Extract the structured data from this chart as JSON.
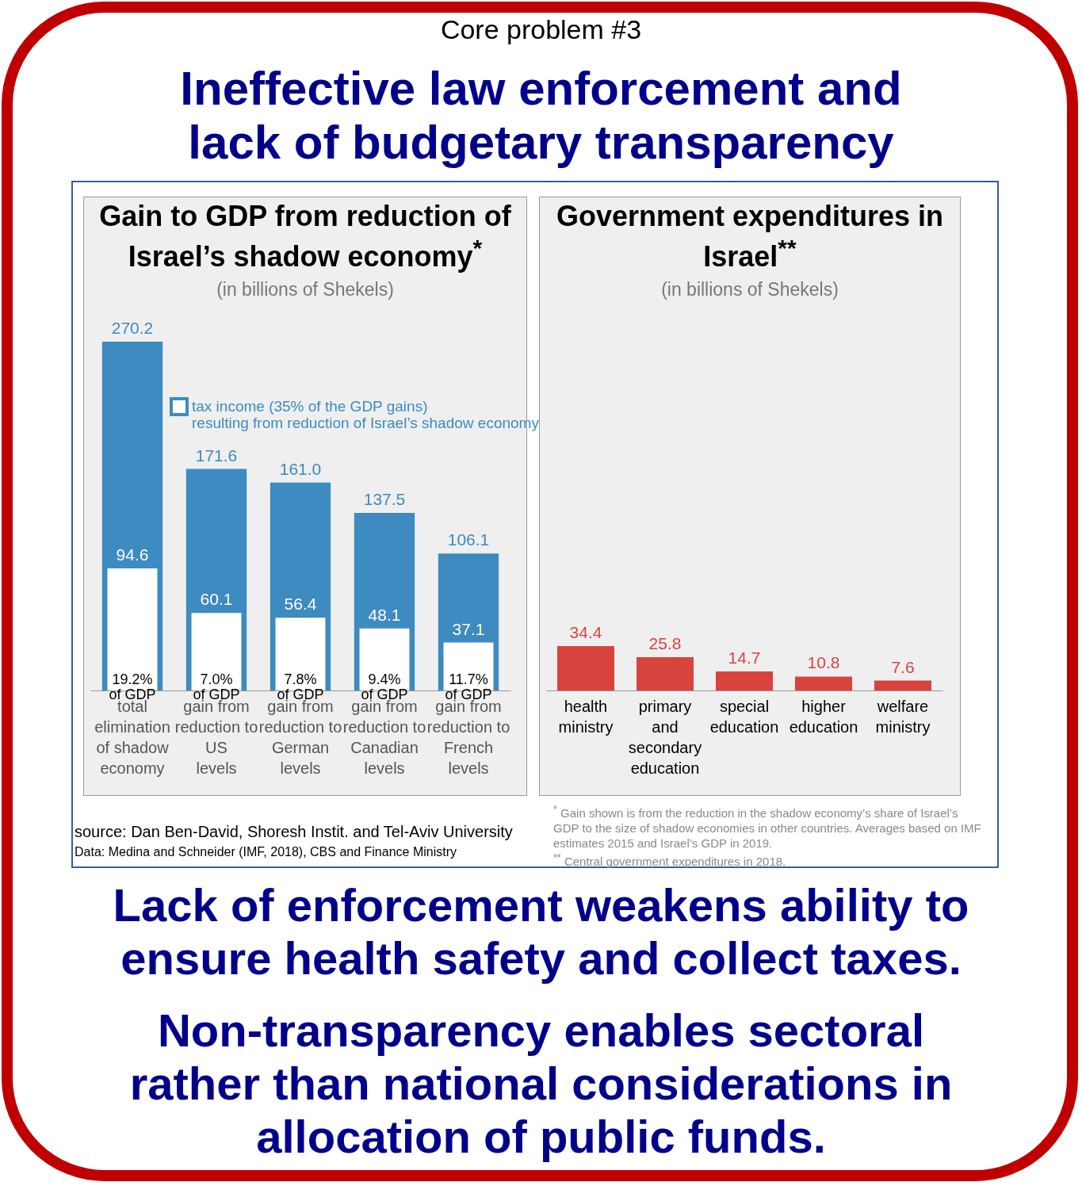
{
  "chart_data": [
    {
      "type": "bar",
      "title": "Gain to GDP from reduction of Israel’s shadow economy$^{*}$",
      "subtitle": "(in billions of Shekels)",
      "categories": [
        "total\nelimination\nof shadow\neconomy",
        "gain from\nreduction to\nUS\nlevels",
        "gain from\nreduction to\nGerman\nlevels",
        "gain from\nreduction to\nCanadian\nlevels",
        "gain from\nreduction to\nFrench\nlevels"
      ],
      "series": [
        {
          "color": "#3d8bc0",
          "values": [
            270.2,
            171.6,
            161.0,
            137.5,
            106.1
          ],
          "value_labels": [
            "270.2",
            "171.6",
            "161.0",
            "137.5",
            "106.1"
          ]
        },
        {
          "name": "tax income (35% of the GDP gains) resulting from reduction of Israel’s shadow economy",
          "color": "#ffffff",
          "values": [
            94.6,
            60.1,
            56.4,
            48.1,
            37.1
          ],
          "value_labels": [
            "94.6",
            "60.1",
            "56.4",
            "48.1",
            "37.1"
          ]
        }
      ],
      "legend": "top",
      "annotations": [
        "Core problem #3",
        "Ineffective law enforcement and lack of budgetary transparency",
        {
          "text": "19.2%\nof GDP",
          "x": "total\nelimination\nof shadow\neconomy",
          "y": 0
        },
        {
          "text": "7.0%\nof GDP",
          "x": "gain from\nreduction to\nUS\nlevels",
          "y": 0
        },
        {
          "text": "7.8%\nof GDP",
          "x": "gain from\nreduction to\nGerman\nlevels",
          "y": 0
        },
        {
          "text": "9.4%\nof GDP",
          "x": "gain from\nreduction to\nCanadian\nlevels",
          "y": 0
        },
        {
          "text": "11.7%\nof GDP",
          "x": "gain from\nreduction to\nFrench\nlevels",
          "y": 0
        },
        "source: Dan Ben-David, Shoresh Instit. and Tel-Aviv University",
        "Data: Medina and Schneider (IMF, 2018), CBS and Finance Ministry",
        "Lack of enforcement weakens ability to ensure health safety and collect taxes.",
        "Non-transparency enables sectoral rather than national considerations in allocation of public funds."
      ]
    },
    {
      "type": "bar",
      "title": "Government expenditures in Israel$^{**}$",
      "subtitle": "(in billions of Shekels)",
      "categories": [
        "health\nministry",
        "primary\nand\nsecondary\neducation",
        "special\neducation",
        "higher\neducation",
        "welfare\nministry"
      ],
      "series": [
        {
          "color": "#d9433e",
          "values": [
            34.4,
            25.8,
            14.7,
            10.8,
            7.6
          ],
          "value_labels": [
            "34.4",
            "25.8",
            "14.7",
            "10.8",
            "7.6"
          ]
        }
      ],
      "annotations": [
        "$^{*}$ Gain shown is from the reduction in the shadow economy’s share of Israel’s GDP to the size of shadow economies in other countries. Averages based on IMF estimates 2015 and Israel’s GDP in 2019.",
        "$^{**}$ Central government expenditures in 2018."
      ]
    }
  ]
}
